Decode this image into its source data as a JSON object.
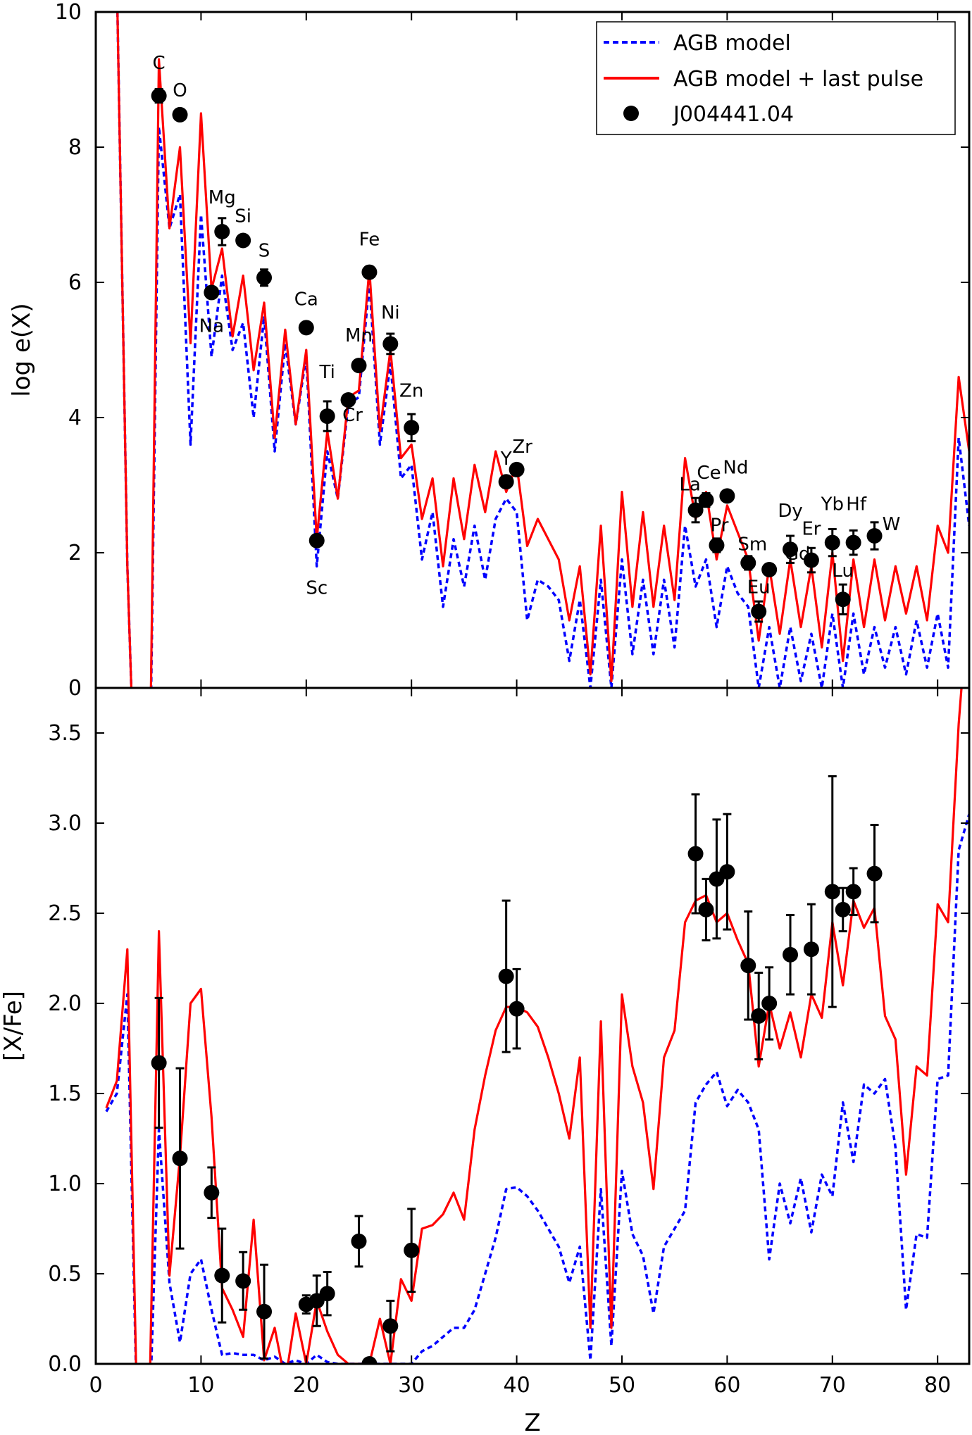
{
  "chart_data": [
    {
      "type": "line",
      "title": "",
      "xlabel": "",
      "ylabel": "log e(X)",
      "xlim": [
        0,
        83
      ],
      "ylim": [
        0,
        10
      ],
      "xticks": [
        0,
        10,
        20,
        30,
        40,
        50,
        60,
        70,
        80
      ],
      "yticks": [
        0,
        2,
        4,
        6,
        8,
        10
      ],
      "legend_position": "top-right",
      "legend": [
        {
          "label": "AGB model",
          "color": "#0000ff",
          "style": "dashed"
        },
        {
          "label": "AGB model + last pulse",
          "color": "#ff0000",
          "style": "solid"
        },
        {
          "label": "J004441.04",
          "color": "#000000",
          "style": "marker"
        }
      ],
      "series": [
        {
          "name": "AGB model",
          "color": "#0000ff",
          "x": [
            2,
            3,
            4,
            5,
            6,
            7,
            8,
            9,
            10,
            11,
            12,
            13,
            14,
            15,
            16,
            17,
            18,
            19,
            20,
            21,
            22,
            23,
            24,
            25,
            26,
            27,
            28,
            29,
            30,
            31,
            32,
            33,
            34,
            35,
            36,
            37,
            38,
            39,
            40,
            41,
            42,
            43,
            44,
            45,
            46,
            47,
            48,
            49,
            50,
            51,
            52,
            53,
            54,
            55,
            56,
            57,
            58,
            59,
            60,
            61,
            62,
            63,
            64,
            65,
            66,
            67,
            68,
            69,
            70,
            71,
            72,
            73,
            74,
            75,
            76,
            77,
            78,
            79,
            80,
            81,
            82,
            83
          ],
          "values": [
            10.5,
            1.8,
            -3.0,
            -3.0,
            8.3,
            6.8,
            7.3,
            3.6,
            7.0,
            4.9,
            6.1,
            5.0,
            5.4,
            4.0,
            5.5,
            3.5,
            5.1,
            3.9,
            4.9,
            1.8,
            3.5,
            2.8,
            4.2,
            4.3,
            6.0,
            3.6,
            4.8,
            3.1,
            3.3,
            1.9,
            2.6,
            1.2,
            2.2,
            1.5,
            2.4,
            1.6,
            2.5,
            2.8,
            2.6,
            1.0,
            1.6,
            1.5,
            1.3,
            0.4,
            1.3,
            0.0,
            1.6,
            0.0,
            1.9,
            0.5,
            1.6,
            0.5,
            1.6,
            0.6,
            2.4,
            1.5,
            1.9,
            0.9,
            1.8,
            1.4,
            1.2,
            0.0,
            0.9,
            0.0,
            0.9,
            0.1,
            0.8,
            0.0,
            1.1,
            0.0,
            1.1,
            0.2,
            0.9,
            0.3,
            0.9,
            0.2,
            1.0,
            0.3,
            1.1,
            0.3,
            3.7,
            2.4
          ]
        },
        {
          "name": "AGB model + last pulse",
          "color": "#ff0000",
          "x": [
            2,
            3,
            4,
            5,
            6,
            7,
            8,
            9,
            10,
            11,
            12,
            13,
            14,
            15,
            16,
            17,
            18,
            19,
            20,
            21,
            22,
            23,
            24,
            25,
            26,
            27,
            28,
            29,
            30,
            31,
            32,
            33,
            34,
            35,
            36,
            37,
            38,
            39,
            40,
            41,
            42,
            43,
            44,
            45,
            46,
            47,
            48,
            49,
            50,
            51,
            52,
            53,
            54,
            55,
            56,
            57,
            58,
            59,
            60,
            61,
            62,
            63,
            64,
            65,
            66,
            67,
            68,
            69,
            70,
            71,
            72,
            73,
            74,
            75,
            76,
            77,
            78,
            79,
            80,
            81,
            82,
            83
          ],
          "values": [
            10.5,
            1.8,
            -3.0,
            -3.0,
            9.3,
            6.8,
            8.0,
            5.1,
            8.5,
            5.9,
            6.5,
            5.2,
            6.1,
            4.7,
            5.7,
            3.7,
            5.3,
            3.9,
            5.0,
            2.2,
            3.8,
            2.8,
            4.3,
            4.4,
            6.2,
            3.8,
            5.0,
            3.4,
            3.6,
            2.5,
            3.1,
            1.8,
            3.1,
            2.2,
            3.3,
            2.6,
            3.5,
            2.9,
            3.3,
            2.1,
            2.5,
            2.2,
            1.9,
            1.0,
            1.8,
            0.2,
            2.4,
            0.1,
            2.9,
            1.2,
            2.6,
            1.2,
            2.4,
            1.3,
            3.4,
            2.5,
            2.9,
            1.9,
            2.7,
            2.3,
            1.9,
            0.7,
            1.8,
            0.8,
            1.9,
            0.9,
            1.8,
            0.6,
            2.0,
            0.4,
            1.9,
            0.9,
            1.9,
            1.0,
            1.8,
            1.1,
            1.8,
            1.0,
            2.4,
            2.0,
            4.6,
            3.5
          ]
        }
      ],
      "observations": {
        "name": "J004441.04",
        "points": [
          {
            "z": 6,
            "value": 8.76,
            "err": 0.1,
            "label": "C"
          },
          {
            "z": 8,
            "value": 8.48,
            "err": 0.05,
            "label": "O"
          },
          {
            "z": 11,
            "value": 5.85,
            "err": 0.08,
            "label": "Na"
          },
          {
            "z": 12,
            "value": 6.75,
            "err": 0.2,
            "label": "Mg"
          },
          {
            "z": 14,
            "value": 6.62,
            "err": 0.08,
            "label": "Si"
          },
          {
            "z": 16,
            "value": 6.07,
            "err": 0.12,
            "label": "S"
          },
          {
            "z": 20,
            "value": 5.33,
            "err": 0.06,
            "label": "Ca"
          },
          {
            "z": 21,
            "value": 2.18,
            "err": 0.08,
            "label": "Sc"
          },
          {
            "z": 22,
            "value": 4.02,
            "err": 0.22,
            "label": "Ti"
          },
          {
            "z": 24,
            "value": 4.26,
            "err": 0.06,
            "label": "Cr"
          },
          {
            "z": 25,
            "value": 4.77,
            "err": 0.05,
            "label": "Mn"
          },
          {
            "z": 26,
            "value": 6.15,
            "err": 0.06,
            "label": "Fe"
          },
          {
            "z": 28,
            "value": 5.09,
            "err": 0.15,
            "label": "Ni"
          },
          {
            "z": 30,
            "value": 3.85,
            "err": 0.2,
            "label": "Zn"
          },
          {
            "z": 39,
            "value": 3.05,
            "err": 0.07,
            "label": "Y"
          },
          {
            "z": 40,
            "value": 3.23,
            "err": 0.07,
            "label": "Zr"
          },
          {
            "z": 57,
            "value": 2.63,
            "err": 0.18,
            "label": "La"
          },
          {
            "z": 58,
            "value": 2.78,
            "err": 0.1,
            "label": "Ce"
          },
          {
            "z": 59,
            "value": 2.11,
            "err": 0.1,
            "label": "Pr"
          },
          {
            "z": 60,
            "value": 2.84,
            "err": 0.07,
            "label": "Nd"
          },
          {
            "z": 62,
            "value": 1.85,
            "err": 0.1,
            "label": "Sm"
          },
          {
            "z": 63,
            "value": 1.13,
            "err": 0.15,
            "label": "Eu"
          },
          {
            "z": 64,
            "value": 1.75,
            "err": 0.08,
            "label": "Gd"
          },
          {
            "z": 66,
            "value": 2.05,
            "err": 0.2,
            "label": "Dy"
          },
          {
            "z": 68,
            "value": 1.89,
            "err": 0.18,
            "label": "Er"
          },
          {
            "z": 70,
            "value": 2.15,
            "err": 0.2,
            "label": "Yb"
          },
          {
            "z": 71,
            "value": 1.31,
            "err": 0.22,
            "label": "Lu"
          },
          {
            "z": 72,
            "value": 2.15,
            "err": 0.18,
            "label": "Hf"
          },
          {
            "z": 74,
            "value": 2.25,
            "err": 0.2,
            "label": "W"
          }
        ]
      }
    },
    {
      "type": "line",
      "title": "",
      "xlabel": "Z",
      "ylabel": "[X/Fe]",
      "xlim": [
        0,
        83
      ],
      "ylim": [
        0.0,
        3.75
      ],
      "xticks": [
        0,
        10,
        20,
        30,
        40,
        50,
        60,
        70,
        80
      ],
      "yticks": [
        0.0,
        0.5,
        1.0,
        1.5,
        2.0,
        2.5,
        3.0,
        3.5
      ],
      "series": [
        {
          "name": "AGB model",
          "color": "#0000ff",
          "x": [
            1,
            2,
            3,
            4,
            5,
            6,
            7,
            8,
            9,
            10,
            11,
            12,
            13,
            14,
            15,
            16,
            17,
            18,
            19,
            20,
            21,
            22,
            23,
            24,
            25,
            26,
            27,
            28,
            29,
            30,
            31,
            32,
            33,
            34,
            35,
            36,
            37,
            38,
            39,
            40,
            41,
            42,
            43,
            44,
            45,
            46,
            47,
            48,
            49,
            50,
            51,
            52,
            53,
            54,
            55,
            56,
            57,
            58,
            59,
            60,
            61,
            62,
            63,
            64,
            65,
            66,
            67,
            68,
            69,
            70,
            71,
            72,
            73,
            74,
            75,
            76,
            77,
            78,
            79,
            80,
            81,
            82,
            83
          ],
          "values": [
            1.4,
            1.5,
            2.05,
            -0.5,
            -0.5,
            1.3,
            0.45,
            0.12,
            0.5,
            0.58,
            0.3,
            0.05,
            0.06,
            0.05,
            0.05,
            0.02,
            0.04,
            0.0,
            0.02,
            0.0,
            0.05,
            0.01,
            0.0,
            0.0,
            0.0,
            0.0,
            0.0,
            0.0,
            0.0,
            0.0,
            0.07,
            0.1,
            0.15,
            0.2,
            0.2,
            0.3,
            0.5,
            0.7,
            0.97,
            0.98,
            0.93,
            0.85,
            0.75,
            0.65,
            0.45,
            0.65,
            0.02,
            0.97,
            0.1,
            1.07,
            0.72,
            0.6,
            0.28,
            0.65,
            0.75,
            0.85,
            1.45,
            1.55,
            1.62,
            1.43,
            1.52,
            1.45,
            1.3,
            0.58,
            1.0,
            0.78,
            1.03,
            0.73,
            1.05,
            0.93,
            1.45,
            1.12,
            1.55,
            1.5,
            1.58,
            1.2,
            0.3,
            0.72,
            0.7,
            1.58,
            1.6,
            2.85,
            3.05
          ]
        },
        {
          "name": "AGB model + last pulse",
          "color": "#ff0000",
          "x": [
            1,
            2,
            3,
            4,
            5,
            6,
            7,
            8,
            9,
            10,
            11,
            12,
            13,
            14,
            15,
            16,
            17,
            18,
            19,
            20,
            21,
            22,
            23,
            24,
            25,
            26,
            27,
            28,
            29,
            30,
            31,
            32,
            33,
            34,
            35,
            36,
            37,
            38,
            39,
            40,
            41,
            42,
            43,
            44,
            45,
            46,
            47,
            48,
            49,
            50,
            51,
            52,
            53,
            54,
            55,
            56,
            57,
            58,
            59,
            60,
            61,
            62,
            63,
            64,
            65,
            66,
            67,
            68,
            69,
            70,
            71,
            72,
            73,
            74,
            75,
            76,
            77,
            78,
            79,
            80,
            81,
            82,
            83
          ],
          "values": [
            1.42,
            1.57,
            2.3,
            -0.5,
            -0.5,
            2.4,
            0.49,
            1.15,
            2.0,
            2.08,
            1.37,
            0.42,
            0.3,
            0.15,
            0.8,
            0.02,
            0.2,
            -0.1,
            0.28,
            0.0,
            0.35,
            0.18,
            0.05,
            0.0,
            0.0,
            0.0,
            0.25,
            0.0,
            0.47,
            0.35,
            0.75,
            0.77,
            0.83,
            0.95,
            0.8,
            1.3,
            1.6,
            1.85,
            1.98,
            1.98,
            1.95,
            1.87,
            1.7,
            1.5,
            1.25,
            1.7,
            0.2,
            1.9,
            0.2,
            2.05,
            1.65,
            1.45,
            0.97,
            1.7,
            1.85,
            2.45,
            2.57,
            2.6,
            2.45,
            2.5,
            2.35,
            2.22,
            1.65,
            2.0,
            1.75,
            1.95,
            1.7,
            2.05,
            1.92,
            2.45,
            2.1,
            2.57,
            2.42,
            2.53,
            1.93,
            1.8,
            1.05,
            1.65,
            1.6,
            2.55,
            2.45,
            3.55,
            4.3
          ]
        }
      ],
      "observations": {
        "name": "J004441.04",
        "points": [
          {
            "z": 6,
            "value": 1.67,
            "err": 0.36
          },
          {
            "z": 8,
            "value": 1.14,
            "err": 0.5
          },
          {
            "z": 11,
            "value": 0.95,
            "err": 0.14
          },
          {
            "z": 12,
            "value": 0.49,
            "err": 0.26
          },
          {
            "z": 14,
            "value": 0.46,
            "err": 0.16
          },
          {
            "z": 16,
            "value": 0.29,
            "err": 0.26
          },
          {
            "z": 20,
            "value": 0.33,
            "err": 0.05
          },
          {
            "z": 21,
            "value": 0.35,
            "err": 0.14
          },
          {
            "z": 22,
            "value": 0.39,
            "err": 0.12
          },
          {
            "z": 25,
            "value": 0.68,
            "err": 0.14
          },
          {
            "z": 26,
            "value": 0.0,
            "err": 0.03
          },
          {
            "z": 28,
            "value": 0.21,
            "err": 0.14
          },
          {
            "z": 30,
            "value": 0.63,
            "err": 0.23
          },
          {
            "z": 39,
            "value": 2.15,
            "err": 0.42
          },
          {
            "z": 40,
            "value": 1.97,
            "err": 0.22
          },
          {
            "z": 57,
            "value": 2.83,
            "err": 0.33
          },
          {
            "z": 58,
            "value": 2.52,
            "err": 0.17
          },
          {
            "z": 59,
            "value": 2.69,
            "err": 0.33
          },
          {
            "z": 60,
            "value": 2.73,
            "err": 0.32
          },
          {
            "z": 62,
            "value": 2.21,
            "err": 0.3
          },
          {
            "z": 63,
            "value": 1.93,
            "err": 0.24
          },
          {
            "z": 64,
            "value": 2.0,
            "err": 0.2
          },
          {
            "z": 66,
            "value": 2.27,
            "err": 0.22
          },
          {
            "z": 68,
            "value": 2.3,
            "err": 0.25
          },
          {
            "z": 70,
            "value": 2.62,
            "err": 0.64
          },
          {
            "z": 71,
            "value": 2.52,
            "err": 0.12
          },
          {
            "z": 72,
            "value": 2.62,
            "err": 0.13
          },
          {
            "z": 74,
            "value": 2.72,
            "err": 0.27
          }
        ]
      }
    }
  ]
}
